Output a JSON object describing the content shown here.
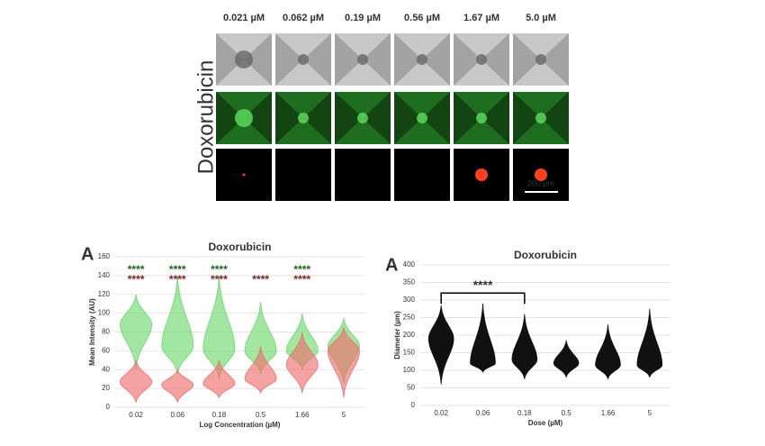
{
  "figure": {
    "row_label": "Doxorubicin",
    "columns": [
      "0.021 µM",
      "0.062 µM",
      "0.19 µM",
      "0.56 µM",
      "1.67 µM",
      "5.0 µM"
    ],
    "scale_bar": "200 µm"
  },
  "chart_data": [
    {
      "type": "violin",
      "panel": "A",
      "title": "Doxorubicin",
      "x_label": "Log Concentration (µM)",
      "y_label": "Mean Intensity (AU)",
      "categories": [
        "0.02",
        "0.06",
        "0.18",
        "0.5",
        "1.66",
        "5"
      ],
      "ylim": [
        0,
        160
      ],
      "yticks": [
        0,
        20,
        40,
        60,
        80,
        100,
        120,
        140,
        160
      ],
      "grid": true,
      "series": [
        {
          "color": "#6fd86f",
          "values": [
            88,
            65,
            62,
            60,
            60,
            65
          ],
          "min": [
            40,
            35,
            30,
            35,
            40,
            25
          ],
          "max": [
            120,
            140,
            140,
            112,
            100,
            95
          ],
          "significance": [
            "****",
            "****",
            "****",
            null,
            "****",
            null
          ]
        },
        {
          "color": "#ee7070",
          "values": [
            27,
            24,
            25,
            30,
            45,
            60
          ],
          "min": [
            5,
            5,
            10,
            15,
            15,
            10
          ],
          "max": [
            50,
            40,
            50,
            65,
            80,
            85
          ],
          "significance": [
            "****",
            "****",
            "****",
            "****",
            "****",
            null
          ]
        }
      ]
    },
    {
      "type": "violin",
      "panel": "A",
      "title": "Doxorubicin",
      "x_label": "Dose (µM)",
      "y_label": "Diameter (µm)",
      "categories": [
        "0.02",
        "0.06",
        "0.18",
        "0.5",
        "1.66",
        "5"
      ],
      "ylim": [
        0,
        400
      ],
      "yticks": [
        0,
        50,
        100,
        150,
        200,
        250,
        300,
        350,
        400
      ],
      "grid": true,
      "series": [
        {
          "color": "#111111",
          "values": [
            190,
            120,
            130,
            120,
            115,
            115
          ],
          "min": [
            60,
            95,
            75,
            80,
            75,
            80
          ],
          "max": [
            285,
            290,
            260,
            185,
            230,
            275
          ]
        }
      ],
      "annotations": [
        {
          "text": "****",
          "from": "0.02",
          "to": "0.18",
          "y": 320
        }
      ]
    }
  ]
}
